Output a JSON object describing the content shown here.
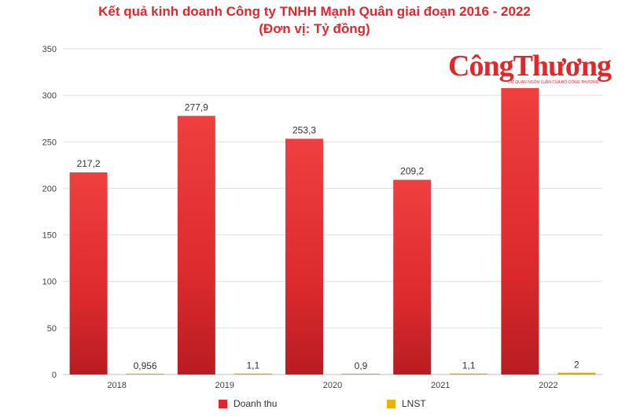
{
  "chart_data": {
    "type": "bar",
    "title": "Kết quả kinh doanh Công ty TNHH Mạnh Quân giai đoạn 2016 - 2022",
    "subtitle": "(Đơn vị: Tỷ đồng)",
    "categories": [
      "2018",
      "2019",
      "2020",
      "2021",
      "2022"
    ],
    "series": [
      {
        "name": "Doanh thu",
        "color": "#e3262a",
        "values": [
          217.2,
          277.9,
          253.3,
          209.2,
          311
        ],
        "labels": [
          "217,2",
          "277,9",
          "253,3",
          "209,2",
          ""
        ]
      },
      {
        "name": "LNST",
        "color": "#e6b400",
        "values": [
          0.956,
          1.1,
          0.9,
          1.1,
          2
        ],
        "labels": [
          "0,956",
          "1,1",
          "0,9",
          "1,1",
          "2"
        ]
      }
    ],
    "yticks": [
      "0",
      "50",
      "100",
      "150",
      "200",
      "250",
      "300",
      "350"
    ],
    "ylim": [
      0,
      350
    ],
    "grid": true,
    "legend_position": "bottom"
  },
  "logo": {
    "text": "CôngThương",
    "tagline": "CƠ QUAN NGÔN LUẬN CỦA BỘ CÔNG THƯƠNG"
  }
}
